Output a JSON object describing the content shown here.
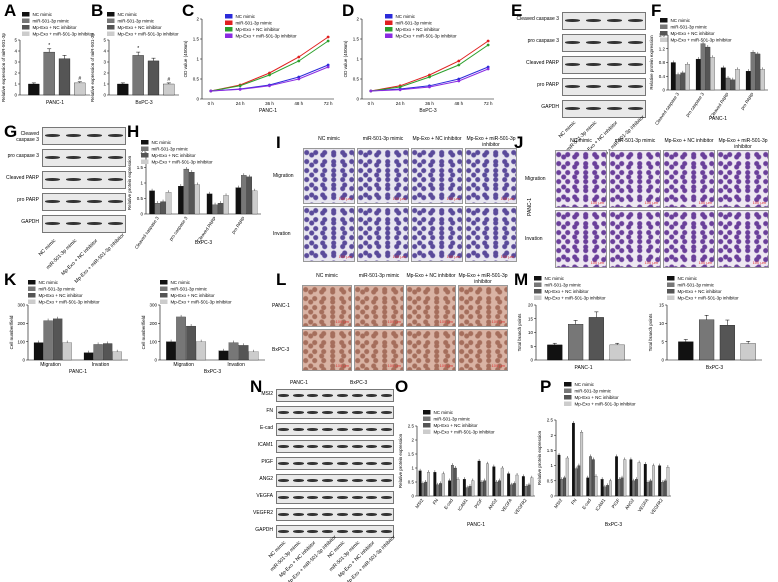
{
  "panel_labels": [
    "A",
    "B",
    "C",
    "D",
    "E",
    "F",
    "G",
    "H",
    "I",
    "J",
    "K",
    "L",
    "M",
    "N",
    "O",
    "P"
  ],
  "groups": [
    "NC mimic",
    "miR-501-3p mimic",
    "Mp-Exo + NC inhibitor",
    "Mp-Exo + miR-501-3p inhibitor"
  ],
  "colors": {
    "g1": "#111111",
    "g2": "#777777",
    "g3": "#555555",
    "g4": "#cccccc",
    "blue": "#2b2bd9",
    "red": "#e02020",
    "green": "#2ca02c",
    "purple": "#8a2be2"
  },
  "blot_E": {
    "rows": [
      "Cleaved caspase 3",
      "pro caspase 3",
      "Cleaved PARP",
      "pro PARP",
      "GAPDH"
    ],
    "cols": [
      "NC mimic",
      "miR-501-3p mimic",
      "Mp-Exo + NC inhibitor",
      "Mp-Exo + miR-501-3p inhibitor"
    ]
  },
  "blot_G": {
    "rows": [
      "Cleaved caspase 3",
      "pro caspase 3",
      "Cleaved PARP",
      "pro PARP",
      "GAPDH"
    ],
    "cols": [
      "NC mimic",
      "miR-501-3p mimic",
      "Mp-Exo + NC inhibitor",
      "Mp-Exo + miR-501-3p inhibitor"
    ]
  },
  "blot_N": {
    "rows": [
      "MSI2",
      "FN",
      "E-cad",
      "ICAM1",
      "PIGF",
      "ANG2",
      "VEGFA",
      "VEGFR2",
      "GAPDH"
    ],
    "headers": [
      "PANC-1",
      "BxPC-3"
    ],
    "cols": [
      "NC mimic",
      "miR-501-3p mimic",
      "Mp-Exo + NC inhibitor",
      "Mp-Exo + miR-501-3p inhibitor",
      "NC mimic",
      "miR-501-3p mimic",
      "Mp-Exo + NC inhibitor",
      "Mp-Exo + miR-501-3p inhibitor"
    ]
  },
  "panel_I": {
    "cols": [
      "NC mimic",
      "miR-501-3p mimic",
      "Mp-Exo + NC inhibitor",
      "Mp-Exo + miR-501-3p inhibitor"
    ],
    "rows": [
      "Migration",
      "Invation"
    ],
    "cell": "PANC-1",
    "scale": "100 μm"
  },
  "panel_J": {
    "cols": [
      "NC mimic",
      "miR-501-3p mimic",
      "Mp-Exo + NC inhibitor",
      "Mp-Exo + miR-501-3p inhibitor"
    ],
    "rows": [
      "Migration",
      "Invation"
    ],
    "cell": "BxPC-3",
    "scale": "100 μm"
  },
  "panel_L": {
    "cols": [
      "NC mimic",
      "miR-501-3p mimic",
      "Mp-Exo + NC inhibitor",
      "Mp-Exo + miR-501-3p inhibitor"
    ],
    "rows": [
      "PANC-1",
      "BxPC-3"
    ],
    "scale": "100 μm"
  },
  "chart_data": [
    {
      "id": "A",
      "type": "bar",
      "title": "",
      "xlabel": "PANC-1",
      "ylabel": "Relative expression of miR-501-3p",
      "ylim": [
        0,
        5
      ],
      "yticks": [
        0,
        1,
        2,
        3,
        4,
        5
      ],
      "values": [
        1.0,
        3.9,
        3.3,
        1.1
      ],
      "errors": [
        0.1,
        0.3,
        0.3,
        0.1
      ],
      "stars": [
        "",
        "*",
        "",
        "#"
      ]
    },
    {
      "id": "B",
      "type": "bar",
      "title": "",
      "xlabel": "BxPC-3",
      "ylabel": "Relative expression of miR-501-3p",
      "ylim": [
        0,
        5
      ],
      "yticks": [
        0,
        1,
        2,
        3,
        4,
        5
      ],
      "values": [
        1.0,
        3.6,
        3.1,
        1.0
      ],
      "errors": [
        0.1,
        0.3,
        0.25,
        0.1
      ],
      "stars": [
        "",
        "*",
        "",
        "#"
      ]
    },
    {
      "id": "C",
      "type": "line",
      "xlabel": "PANC-1",
      "ylabel": "OD value (450nm)",
      "x": [
        "0 h",
        "24 h",
        "36 h",
        "48 h",
        "72 h"
      ],
      "ylim": [
        0,
        2.0
      ],
      "yticks": [
        0.0,
        0.5,
        1.0,
        1.5,
        2.0
      ],
      "series": [
        {
          "name": "NC mimic",
          "color": "#2b2bd9",
          "values": [
            0.2,
            0.25,
            0.35,
            0.55,
            0.85
          ]
        },
        {
          "name": "miR-501-3p mimic",
          "color": "#e02020",
          "values": [
            0.2,
            0.35,
            0.65,
            1.05,
            1.55
          ]
        },
        {
          "name": "Mp-Exo + NC inhibitor",
          "color": "#2ca02c",
          "values": [
            0.2,
            0.33,
            0.6,
            0.95,
            1.45
          ]
        },
        {
          "name": "Mp-Exo + miR-501-3p inhibitor",
          "color": "#8a2be2",
          "values": [
            0.2,
            0.24,
            0.33,
            0.5,
            0.8
          ]
        }
      ]
    },
    {
      "id": "D",
      "type": "line",
      "xlabel": "BxPC-3",
      "ylabel": "OD value (450nm)",
      "x": [
        "0 h",
        "24 h",
        "36 h",
        "48 h",
        "72 h"
      ],
      "ylim": [
        0,
        2.0
      ],
      "yticks": [
        0.0,
        0.5,
        1.0,
        1.5,
        2.0
      ],
      "series": [
        {
          "name": "NC mimic",
          "color": "#2b2bd9",
          "values": [
            0.2,
            0.25,
            0.33,
            0.5,
            0.8
          ]
        },
        {
          "name": "miR-501-3p mimic",
          "color": "#e02020",
          "values": [
            0.2,
            0.33,
            0.6,
            0.95,
            1.45
          ]
        },
        {
          "name": "Mp-Exo + NC inhibitor",
          "color": "#2ca02c",
          "values": [
            0.2,
            0.3,
            0.55,
            0.85,
            1.35
          ]
        },
        {
          "name": "Mp-Exo + miR-501-3p inhibitor",
          "color": "#8a2be2",
          "values": [
            0.2,
            0.23,
            0.3,
            0.45,
            0.75
          ]
        }
      ]
    },
    {
      "id": "F",
      "type": "bar",
      "xlabel": "PANC-1",
      "ylabel": "Relative protein expression",
      "ylim": [
        0,
        1.6
      ],
      "yticks": [
        0.0,
        0.4,
        0.8,
        1.2,
        1.6
      ],
      "categories": [
        "Cleaved caspase 3",
        "pro caspase 3",
        "Cleaved PARP",
        "pro PARP"
      ],
      "series": [
        {
          "values": [
            0.8,
            0.9,
            0.65,
            0.55
          ]
        },
        {
          "values": [
            0.45,
            1.35,
            0.35,
            1.1
          ]
        },
        {
          "values": [
            0.5,
            1.25,
            0.3,
            1.05
          ]
        },
        {
          "values": [
            0.75,
            0.95,
            0.6,
            0.6
          ]
        }
      ]
    },
    {
      "id": "H",
      "type": "bar",
      "xlabel": "BxPC-3",
      "ylabel": "Relative protein expression",
      "ylim": [
        0,
        2.0
      ],
      "yticks": [
        0.0,
        0.5,
        1.0,
        1.5,
        2.0
      ],
      "categories": [
        "Cleaved caspase 3",
        "pro caspase 3",
        "Cleaved PARP",
        "pro PARP"
      ],
      "series": [
        {
          "values": [
            0.75,
            0.9,
            0.65,
            0.85
          ]
        },
        {
          "values": [
            0.35,
            1.45,
            0.3,
            1.25
          ]
        },
        {
          "values": [
            0.4,
            1.35,
            0.35,
            1.2
          ]
        },
        {
          "values": [
            0.7,
            0.95,
            0.6,
            0.75
          ]
        }
      ]
    },
    {
      "id": "K1",
      "type": "bar",
      "xlabel": "PANC-1",
      "ylabel": "Cell number/field",
      "ylim": [
        0,
        300
      ],
      "yticks": [
        0,
        100,
        200,
        300
      ],
      "categories": [
        "Migration",
        "Invation"
      ],
      "series": [
        {
          "values": [
            95,
            40
          ]
        },
        {
          "values": [
            215,
            85
          ]
        },
        {
          "values": [
            225,
            90
          ]
        },
        {
          "values": [
            95,
            45
          ]
        }
      ]
    },
    {
      "id": "K2",
      "type": "bar",
      "xlabel": "BxPC-3",
      "ylabel": "Cell number/field",
      "ylim": [
        0,
        300
      ],
      "yticks": [
        0,
        100,
        200,
        300
      ],
      "categories": [
        "Migration",
        "Invation"
      ],
      "series": [
        {
          "values": [
            100,
            50
          ]
        },
        {
          "values": [
            235,
            95
          ]
        },
        {
          "values": [
            185,
            80
          ]
        },
        {
          "values": [
            100,
            45
          ]
        }
      ]
    },
    {
      "id": "M1",
      "type": "bar",
      "xlabel": "PANC-1",
      "ylabel": "Total branch points",
      "ylim": [
        0,
        20
      ],
      "yticks": [
        0,
        5,
        10,
        15,
        20
      ],
      "values": [
        5.5,
        13,
        15.5,
        5.5
      ],
      "errors": [
        0.6,
        1.4,
        2,
        0.6
      ]
    },
    {
      "id": "M2",
      "type": "bar",
      "xlabel": "BxPC-3",
      "ylabel": "Total branch points",
      "ylim": [
        0,
        15
      ],
      "yticks": [
        0,
        5,
        10,
        15
      ],
      "values": [
        5,
        11,
        9.5,
        4.5
      ],
      "errors": [
        0.6,
        1.2,
        1.4,
        0.6
      ]
    },
    {
      "id": "O",
      "type": "bar",
      "xlabel": "PANC-1",
      "ylabel": "Relative protein expression",
      "ylim": [
        0,
        2.5
      ],
      "yticks": [
        0.0,
        0.5,
        1.0,
        1.5,
        2.0,
        2.5
      ],
      "categories": [
        "MSI2",
        "FN",
        "E-cad",
        "ICAM1",
        "PIGF",
        "ANG2",
        "VEGFA",
        "VEGFR2"
      ],
      "series": [
        {
          "values": [
            0.9,
            0.85,
            0.55,
            0.6,
            1.25,
            1.05,
            0.8,
            0.7
          ]
        },
        {
          "values": [
            0.45,
            0.4,
            1.1,
            0.3,
            0.5,
            0.5,
            0.4,
            0.35
          ]
        },
        {
          "values": [
            0.5,
            0.45,
            1.0,
            0.35,
            0.55,
            0.55,
            0.45,
            0.4
          ]
        },
        {
          "values": [
            0.85,
            0.8,
            0.6,
            0.55,
            1.15,
            1.0,
            0.75,
            0.65
          ]
        }
      ]
    },
    {
      "id": "P",
      "type": "bar",
      "xlabel": "BxPC-3",
      "ylabel": "Relative protein expression",
      "ylim": [
        0,
        2.5
      ],
      "yticks": [
        0.0,
        0.5,
        1.0,
        1.5,
        2.0,
        2.5
      ],
      "categories": [
        "MSI2",
        "FN",
        "E-cad",
        "ICAM1",
        "PIGF",
        "ANG2",
        "VEGFA",
        "VEGFR2"
      ],
      "series": [
        {
          "values": [
            1.35,
            2.4,
            0.6,
            0.55,
            1.3,
            1.2,
            1.05,
            1.0
          ]
        },
        {
          "values": [
            0.55,
            0.9,
            1.3,
            0.3,
            0.55,
            0.5,
            0.45,
            0.45
          ]
        },
        {
          "values": [
            0.6,
            1.0,
            1.2,
            0.35,
            0.6,
            0.55,
            0.5,
            0.5
          ]
        },
        {
          "values": [
            1.25,
            2.1,
            0.65,
            0.5,
            1.2,
            1.1,
            1.0,
            0.95
          ]
        }
      ]
    }
  ]
}
